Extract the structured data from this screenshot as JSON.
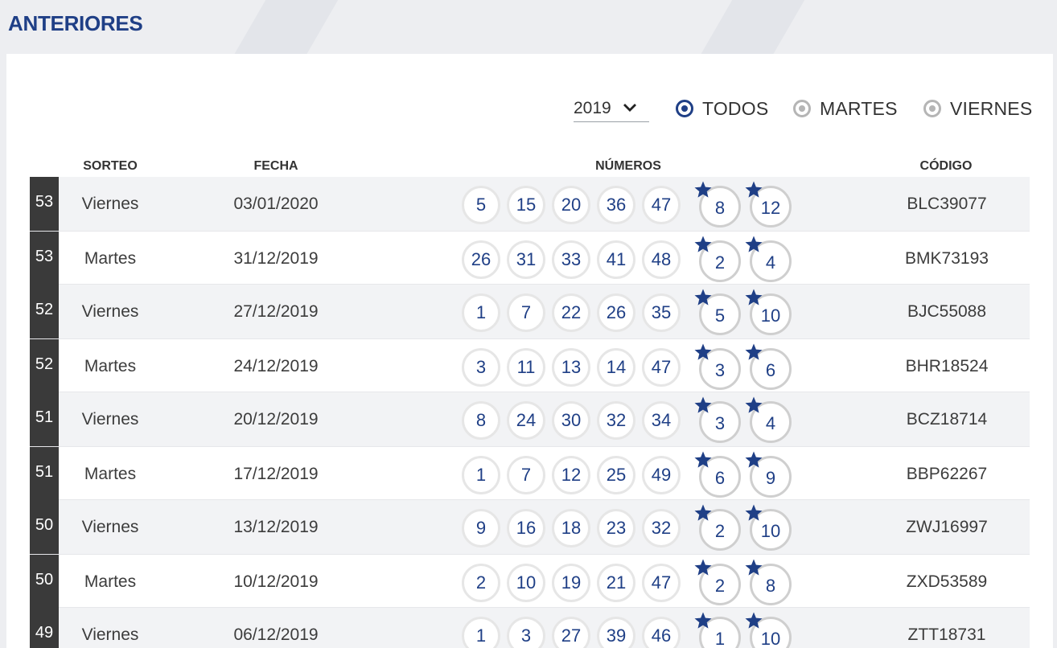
{
  "header": {
    "title": "ANTERIORES"
  },
  "filters": {
    "year": "2019",
    "options": [
      {
        "label": "TODOS",
        "selected": true
      },
      {
        "label": "MARTES",
        "selected": false
      },
      {
        "label": "VIERNES",
        "selected": false
      }
    ]
  },
  "table": {
    "columns": {
      "sorteo": "SORTEO",
      "fecha": "FECHA",
      "numeros": "NÚMEROS",
      "codigo": "CÓDIGO"
    },
    "rows": [
      {
        "week": "53",
        "day": "Viernes",
        "date": "03/01/2020",
        "numbers": [
          "5",
          "15",
          "20",
          "36",
          "47"
        ],
        "stars": [
          "8",
          "12"
        ],
        "code": "BLC39077"
      },
      {
        "week": "53",
        "day": "Martes",
        "date": "31/12/2019",
        "numbers": [
          "26",
          "31",
          "33",
          "41",
          "48"
        ],
        "stars": [
          "2",
          "4"
        ],
        "code": "BMK73193"
      },
      {
        "week": "52",
        "day": "Viernes",
        "date": "27/12/2019",
        "numbers": [
          "1",
          "7",
          "22",
          "26",
          "35"
        ],
        "stars": [
          "5",
          "10"
        ],
        "code": "BJC55088"
      },
      {
        "week": "52",
        "day": "Martes",
        "date": "24/12/2019",
        "numbers": [
          "3",
          "11",
          "13",
          "14",
          "47"
        ],
        "stars": [
          "3",
          "6"
        ],
        "code": "BHR18524"
      },
      {
        "week": "51",
        "day": "Viernes",
        "date": "20/12/2019",
        "numbers": [
          "8",
          "24",
          "30",
          "32",
          "34"
        ],
        "stars": [
          "3",
          "4"
        ],
        "code": "BCZ18714"
      },
      {
        "week": "51",
        "day": "Martes",
        "date": "17/12/2019",
        "numbers": [
          "1",
          "7",
          "12",
          "25",
          "49"
        ],
        "stars": [
          "6",
          "9"
        ],
        "code": "BBP62267"
      },
      {
        "week": "50",
        "day": "Viernes",
        "date": "13/12/2019",
        "numbers": [
          "9",
          "16",
          "18",
          "23",
          "32"
        ],
        "stars": [
          "2",
          "10"
        ],
        "code": "ZWJ16997"
      },
      {
        "week": "50",
        "day": "Martes",
        "date": "10/12/2019",
        "numbers": [
          "2",
          "10",
          "19",
          "21",
          "47"
        ],
        "stars": [
          "2",
          "8"
        ],
        "code": "ZXD53589"
      },
      {
        "week": "49",
        "day": "Viernes",
        "date": "06/12/2019",
        "numbers": [
          "1",
          "3",
          "27",
          "39",
          "46"
        ],
        "stars": [
          "1",
          "10"
        ],
        "code": "ZTT18731"
      }
    ]
  },
  "colors": {
    "accent": "#1f3f86",
    "week_badge": "#3a3a3a"
  },
  "icons": {
    "year_toggle": "chevron-down-icon",
    "star": "star-icon"
  }
}
